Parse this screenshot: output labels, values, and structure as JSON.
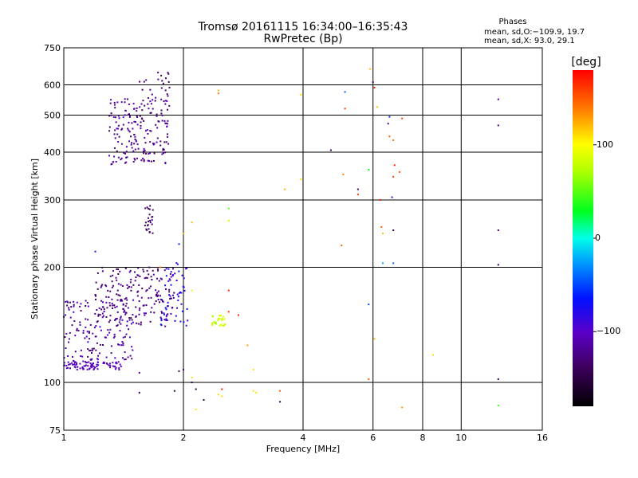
{
  "header": {
    "title_line1": "Tromsø 20161115 16:34:00–16:35:43",
    "title_line2": "RwPretec (Bp)"
  },
  "stats": {
    "heading": "Phases",
    "line1": "mean, sd,O:−109.9, 19.7",
    "line2": "mean, sd,X:  93.0, 29.1"
  },
  "colorbar": {
    "label": "[deg]",
    "range": [
      -180,
      180
    ],
    "ticks": [
      100,
      0,
      -100
    ],
    "tick_labels": [
      "100",
      "0",
      "−100"
    ]
  },
  "chart_data": {
    "type": "scatter",
    "title": "Tromsø 20161115 16:34:00–16:35:43",
    "subtitle": "RwPretec (Bp)",
    "xlabel": "Frequency [MHz]",
    "ylabel": "Stationary phase Virtual Height [km]",
    "x_scale": "log",
    "y_scale": "log",
    "xlim": [
      1,
      16
    ],
    "ylim": [
      75,
      750
    ],
    "x_ticks": [
      1,
      2,
      4,
      6,
      8,
      10,
      16
    ],
    "y_ticks": [
      75,
      100,
      200,
      300,
      400,
      500,
      600,
      750
    ],
    "x_gridlines": [
      2,
      4,
      6,
      8,
      10
    ],
    "y_gridlines": [
      100,
      200,
      300,
      400,
      500,
      600
    ],
    "grid": true,
    "color_encodes": "phase [deg]",
    "clusters": [
      {
        "desc": "F-layer O trace",
        "freq": [
          1.3,
          1.85
        ],
        "height": [
          370,
          560
        ],
        "phase": [
          -100,
          -140
        ],
        "n": 190
      },
      {
        "desc": "F-layer scatter top",
        "freq": [
          1.55,
          1.85
        ],
        "height": [
          560,
          650
        ],
        "phase": [
          -120,
          -140
        ],
        "n": 20
      },
      {
        "desc": "E/F1 low band",
        "freq": [
          1.0,
          1.4
        ],
        "height": [
          108,
          114
        ],
        "phase": [
          -100,
          -110
        ],
        "n": 90
      },
      {
        "desc": "lower mixed",
        "freq": [
          1.0,
          1.5
        ],
        "height": [
          114,
          165
        ],
        "phase": [
          -90,
          -140
        ],
        "n": 160
      },
      {
        "desc": "upper mixed",
        "freq": [
          1.2,
          1.9
        ],
        "height": [
          140,
          200
        ],
        "phase": [
          -110,
          -140
        ],
        "n": 180
      },
      {
        "desc": "cyan patch",
        "freq": [
          1.75,
          2.05
        ],
        "height": [
          140,
          210
        ],
        "phase": [
          -60,
          -100
        ],
        "n": 60
      },
      {
        "desc": "yellow-green patch",
        "freq": [
          2.35,
          2.55
        ],
        "height": [
          140,
          150
        ],
        "phase": [
          60,
          100
        ],
        "n": 30
      },
      {
        "desc": "streak 250-290 km",
        "freq": [
          1.6,
          1.68
        ],
        "height": [
          245,
          290
        ],
        "phase": [
          -130,
          -140
        ],
        "n": 25
      }
    ],
    "scattered_points": [
      {
        "f": 1.2,
        "h": 220,
        "p": -90
      },
      {
        "f": 2.45,
        "h": 580,
        "p": 120
      },
      {
        "f": 2.45,
        "h": 570,
        "p": 140
      },
      {
        "f": 3.95,
        "h": 565,
        "p": 110
      },
      {
        "f": 3.95,
        "h": 340,
        "p": 110
      },
      {
        "f": 3.6,
        "h": 320,
        "p": 120
      },
      {
        "f": 4.7,
        "h": 405,
        "p": -150
      },
      {
        "f": 5.1,
        "h": 575,
        "p": -40
      },
      {
        "f": 5.1,
        "h": 520,
        "p": 160
      },
      {
        "f": 5.9,
        "h": 660,
        "p": 120
      },
      {
        "f": 6.0,
        "h": 610,
        "p": -130
      },
      {
        "f": 6.05,
        "h": 590,
        "p": 170
      },
      {
        "f": 6.15,
        "h": 525,
        "p": 120
      },
      {
        "f": 6.6,
        "h": 495,
        "p": -60
      },
      {
        "f": 6.55,
        "h": 475,
        "p": -120
      },
      {
        "f": 7.1,
        "h": 490,
        "p": 160
      },
      {
        "f": 6.6,
        "h": 440,
        "p": 150
      },
      {
        "f": 6.75,
        "h": 430,
        "p": 140
      },
      {
        "f": 6.8,
        "h": 370,
        "p": 170
      },
      {
        "f": 7.0,
        "h": 355,
        "p": 150
      },
      {
        "f": 6.75,
        "h": 345,
        "p": 160
      },
      {
        "f": 6.7,
        "h": 305,
        "p": -100
      },
      {
        "f": 5.85,
        "h": 360,
        "p": 30
      },
      {
        "f": 5.05,
        "h": 350,
        "p": 140
      },
      {
        "f": 5.5,
        "h": 320,
        "p": -130
      },
      {
        "f": 5.5,
        "h": 310,
        "p": 160
      },
      {
        "f": 6.25,
        "h": 300,
        "p": 170
      },
      {
        "f": 6.3,
        "h": 255,
        "p": 150
      },
      {
        "f": 6.35,
        "h": 245,
        "p": 120
      },
      {
        "f": 6.75,
        "h": 250,
        "p": -150
      },
      {
        "f": 5.0,
        "h": 228,
        "p": 150
      },
      {
        "f": 6.35,
        "h": 205,
        "p": -20
      },
      {
        "f": 6.75,
        "h": 205,
        "p": -40
      },
      {
        "f": 5.85,
        "h": 160,
        "p": -50
      },
      {
        "f": 6.05,
        "h": 130,
        "p": 120
      },
      {
        "f": 8.5,
        "h": 118,
        "p": 110
      },
      {
        "f": 5.85,
        "h": 102,
        "p": 150
      },
      {
        "f": 7.1,
        "h": 86,
        "p": 130
      },
      {
        "f": 12.4,
        "h": 550,
        "p": -120
      },
      {
        "f": 12.4,
        "h": 470,
        "p": -120
      },
      {
        "f": 12.4,
        "h": 250,
        "p": -130
      },
      {
        "f": 12.4,
        "h": 203,
        "p": -150
      },
      {
        "f": 12.4,
        "h": 102,
        "p": -150
      },
      {
        "f": 12.4,
        "h": 87,
        "p": 40
      },
      {
        "f": 2.6,
        "h": 285,
        "p": 50
      },
      {
        "f": 2.6,
        "h": 265,
        "p": 80
      },
      {
        "f": 2.1,
        "h": 262,
        "p": 120
      },
      {
        "f": 2.0,
        "h": 245,
        "p": 120
      },
      {
        "f": 2.6,
        "h": 153,
        "p": 160
      },
      {
        "f": 2.75,
        "h": 150,
        "p": 170
      },
      {
        "f": 2.9,
        "h": 125,
        "p": 130
      },
      {
        "f": 3.0,
        "h": 108,
        "p": 110
      },
      {
        "f": 3.0,
        "h": 95,
        "p": 110
      },
      {
        "f": 3.05,
        "h": 94,
        "p": 110
      },
      {
        "f": 3.5,
        "h": 95,
        "p": 150
      },
      {
        "f": 3.5,
        "h": 89,
        "p": -150
      },
      {
        "f": 2.5,
        "h": 96,
        "p": 170
      },
      {
        "f": 2.45,
        "h": 93,
        "p": 110
      },
      {
        "f": 2.5,
        "h": 92,
        "p": 110
      },
      {
        "f": 2.25,
        "h": 90,
        "p": -150
      },
      {
        "f": 2.15,
        "h": 85,
        "p": 110
      },
      {
        "f": 2.1,
        "h": 100,
        "p": -150
      },
      {
        "f": 2.15,
        "h": 96,
        "p": -150
      },
      {
        "f": 2.1,
        "h": 103,
        "p": 110
      },
      {
        "f": 1.9,
        "h": 95,
        "p": -150
      },
      {
        "f": 1.95,
        "h": 107,
        "p": -140
      },
      {
        "f": 2.0,
        "h": 108,
        "p": -120
      },
      {
        "f": 1.55,
        "h": 106,
        "p": -120
      },
      {
        "f": 1.55,
        "h": 94,
        "p": -140
      },
      {
        "f": 1.95,
        "h": 230,
        "p": -60
      },
      {
        "f": 1.75,
        "h": 200,
        "p": 140
      },
      {
        "f": 2.1,
        "h": 174,
        "p": 90
      },
      {
        "f": 2.6,
        "h": 174,
        "p": 170
      }
    ]
  }
}
